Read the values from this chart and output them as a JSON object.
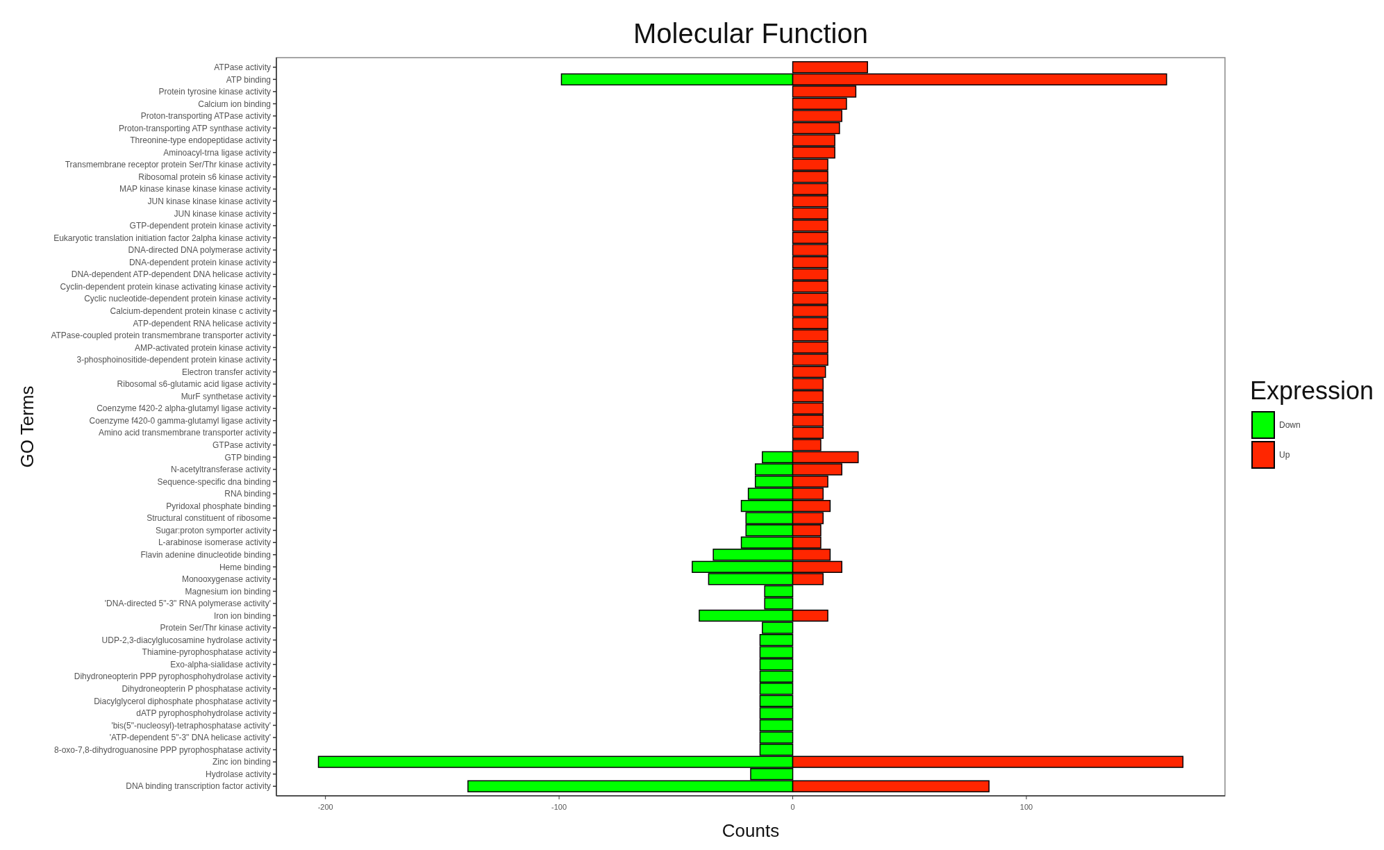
{
  "chart_data": {
    "type": "bar",
    "orientation": "horizontal",
    "title": "Molecular Function",
    "xlabel": "Counts",
    "ylabel": "GO Terms",
    "legend_title": "Expression",
    "legend": "right",
    "grid": false,
    "categories": [
      "ATPase activity",
      "ATP binding",
      "Protein tyrosine kinase activity",
      "Calcium ion binding",
      "Proton-transporting ATPase activity",
      "Proton-transporting ATP synthase activity",
      "Threonine-type endopeptidase activity",
      "Aminoacyl-trna ligase activity",
      "Transmembrane receptor protein Ser/Thr kinase activity",
      "Ribosomal protein s6 kinase activity",
      "MAP kinase kinase kinase kinase activity",
      "JUN kinase kinase kinase activity",
      "JUN kinase kinase activity",
      "GTP-dependent protein kinase activity",
      "Eukaryotic translation initiation factor 2alpha kinase activity",
      "DNA-directed DNA polymerase activity",
      "DNA-dependent protein kinase activity",
      "DNA-dependent ATP-dependent DNA helicase activity",
      "Cyclin-dependent protein kinase activating kinase activity",
      "Cyclic nucleotide-dependent protein kinase activity",
      "Calcium-dependent protein kinase c activity",
      "ATP-dependent RNA helicase activity",
      "ATPase-coupled protein transmembrane transporter activity",
      "AMP-activated protein kinase activity",
      "3-phosphoinositide-dependent protein kinase activity",
      "Electron transfer activity",
      "Ribosomal s6-glutamic acid ligase activity",
      "MurF synthetase activity",
      "Coenzyme f420-2 alpha-glutamyl ligase activity",
      "Coenzyme f420-0 gamma-glutamyl ligase activity",
      "Amino acid transmembrane transporter activity",
      "GTPase activity",
      "GTP binding",
      "N-acetyltransferase activity",
      "Sequence-specific dna binding",
      "RNA binding",
      "Pyridoxal phosphate binding",
      "Structural constituent of ribosome",
      "Sugar:proton symporter activity",
      "L-arabinose isomerase activity",
      "Flavin adenine dinucleotide binding",
      "Heme binding",
      "Monooxygenase activity",
      "Magnesium ion binding",
      "'DNA-directed 5\"-3\" RNA polymerase activity'",
      "Iron ion binding",
      "Protein Ser/Thr kinase activity",
      "UDP-2,3-diacylglucosamine hydrolase activity",
      "Thiamine-pyrophosphatase activity",
      "Exo-alpha-sialidase activity",
      "Dihydroneopterin PPP pyrophosphohydrolase activity",
      "Dihydroneopterin P phosphatase activity",
      "Diacylglycerol diphosphate phosphatase activity",
      "dATP pyrophosphohydrolase activity",
      "'bis(5\"-nucleosyl)-tetraphosphatase activity'",
      "'ATP-dependent 5\"-3\" DNA helicase activity'",
      "8-oxo-7,8-dihydroguanosine PPP pyrophosphatase activity",
      "Zinc ion binding",
      "Hydrolase activity",
      "DNA binding transcription factor activity"
    ],
    "series": [
      {
        "name": "Down",
        "color": "#00ff00",
        "values": [
          null,
          -99,
          null,
          null,
          null,
          null,
          null,
          null,
          null,
          null,
          null,
          null,
          null,
          null,
          null,
          null,
          null,
          null,
          null,
          null,
          null,
          null,
          null,
          null,
          null,
          null,
          null,
          null,
          null,
          null,
          null,
          null,
          -13,
          -16,
          -16,
          -19,
          -22,
          -20,
          -20,
          -22,
          -34,
          -43,
          -36,
          -12,
          -12,
          -40,
          -13,
          -14,
          -14,
          -14,
          -14,
          -14,
          -14,
          -14,
          -14,
          -14,
          -14,
          -203,
          -18,
          -139
        ]
      },
      {
        "name": "Up",
        "color": "#ff2600",
        "values": [
          32,
          160,
          27,
          23,
          21,
          20,
          18,
          18,
          15,
          15,
          15,
          15,
          15,
          15,
          15,
          15,
          15,
          15,
          15,
          15,
          15,
          15,
          15,
          15,
          15,
          14,
          13,
          13,
          13,
          13,
          13,
          12,
          28,
          21,
          15,
          13,
          16,
          13,
          12,
          12,
          16,
          21,
          13,
          null,
          null,
          15,
          null,
          null,
          null,
          null,
          null,
          null,
          null,
          null,
          null,
          null,
          null,
          167,
          null,
          84
        ]
      }
    ],
    "xlim": [
      -221,
      185
    ],
    "xticks": [
      -200,
      -100,
      0,
      100
    ]
  }
}
